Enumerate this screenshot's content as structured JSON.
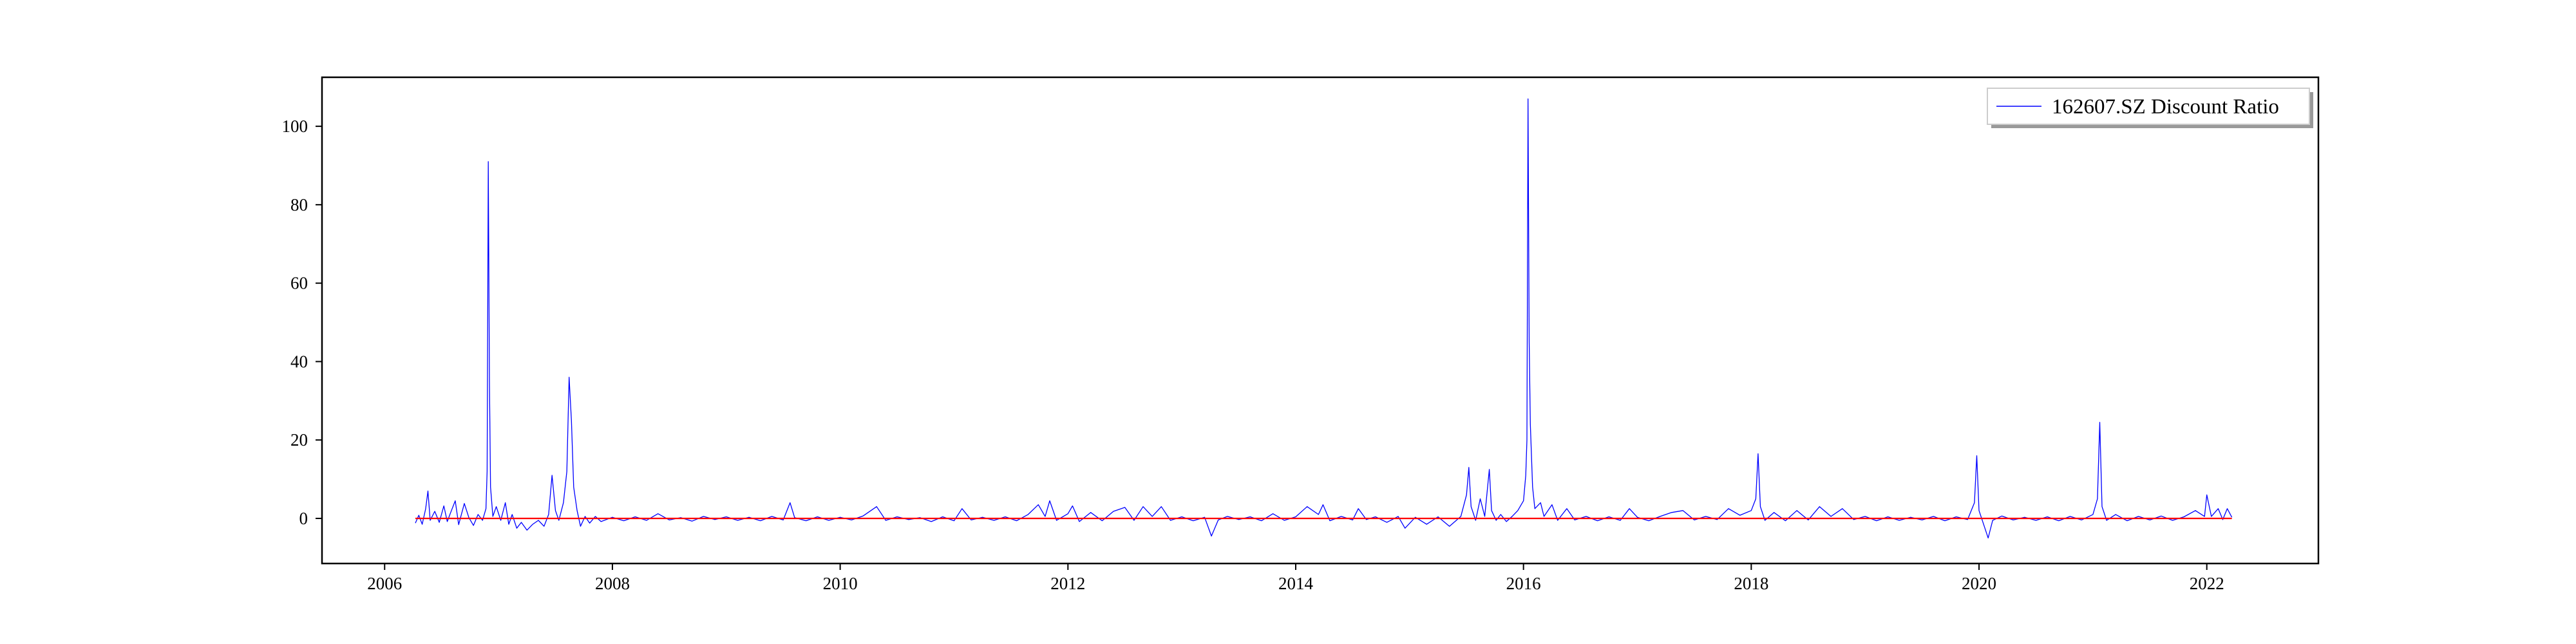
{
  "chart_data": {
    "type": "line",
    "title": "",
    "xlabel": "",
    "ylabel": "",
    "xlim": [
      2005.45,
      2022.98
    ],
    "ylim": [
      -11.5,
      112.5
    ],
    "x_ticks": [
      2006,
      2008,
      2010,
      2012,
      2014,
      2016,
      2018,
      2020,
      2022
    ],
    "y_ticks": [
      0,
      20,
      40,
      60,
      80,
      100
    ],
    "x_tick_labels": [
      "2006",
      "2008",
      "2010",
      "2012",
      "2014",
      "2016",
      "2018",
      "2020",
      "2022"
    ],
    "y_tick_labels": [
      "0",
      "20",
      "40",
      "60",
      "80",
      "100"
    ],
    "grid": false,
    "legend_position": "upper right",
    "x_range": [
      2006.27,
      2022.22
    ],
    "series": [
      {
        "name": "162607.SZ Discount Ratio",
        "color": "#0000ff",
        "points": [
          [
            2006.27,
            -1.2
          ],
          [
            2006.3,
            0.8
          ],
          [
            2006.33,
            -1.5
          ],
          [
            2006.36,
            2.4
          ],
          [
            2006.38,
            7.0
          ],
          [
            2006.4,
            -0.5
          ],
          [
            2006.44,
            1.8
          ],
          [
            2006.48,
            -1.0
          ],
          [
            2006.52,
            3.2
          ],
          [
            2006.55,
            -0.8
          ],
          [
            2006.58,
            1.5
          ],
          [
            2006.62,
            4.5
          ],
          [
            2006.65,
            -1.6
          ],
          [
            2006.7,
            3.8
          ],
          [
            2006.74,
            0.2
          ],
          [
            2006.78,
            -1.8
          ],
          [
            2006.82,
            1.0
          ],
          [
            2006.86,
            -0.5
          ],
          [
            2006.89,
            2.5
          ],
          [
            2006.9,
            12.0
          ],
          [
            2006.91,
            91.0
          ],
          [
            2006.92,
            35.0
          ],
          [
            2006.93,
            8.0
          ],
          [
            2006.95,
            0.5
          ],
          [
            2006.98,
            3.0
          ],
          [
            2007.02,
            -0.5
          ],
          [
            2007.06,
            4.0
          ],
          [
            2007.09,
            -1.5
          ],
          [
            2007.12,
            1.0
          ],
          [
            2007.16,
            -2.5
          ],
          [
            2007.2,
            -1.0
          ],
          [
            2007.25,
            -3.0
          ],
          [
            2007.3,
            -1.5
          ],
          [
            2007.35,
            -0.5
          ],
          [
            2007.4,
            -2.0
          ],
          [
            2007.44,
            1.0
          ],
          [
            2007.47,
            11.0
          ],
          [
            2007.5,
            2.0
          ],
          [
            2007.53,
            -0.5
          ],
          [
            2007.57,
            4.0
          ],
          [
            2007.6,
            12.0
          ],
          [
            2007.62,
            36.0
          ],
          [
            2007.64,
            25.0
          ],
          [
            2007.66,
            8.0
          ],
          [
            2007.69,
            2.0
          ],
          [
            2007.72,
            -2.0
          ],
          [
            2007.76,
            0.5
          ],
          [
            2007.8,
            -1.2
          ],
          [
            2007.85,
            0.5
          ],
          [
            2007.9,
            -0.8
          ],
          [
            2008.0,
            0.3
          ],
          [
            2008.1,
            -0.6
          ],
          [
            2008.2,
            0.4
          ],
          [
            2008.3,
            -0.5
          ],
          [
            2008.4,
            1.2
          ],
          [
            2008.5,
            -0.4
          ],
          [
            2008.6,
            0.2
          ],
          [
            2008.7,
            -0.7
          ],
          [
            2008.8,
            0.5
          ],
          [
            2008.9,
            -0.3
          ],
          [
            2009.0,
            0.4
          ],
          [
            2009.1,
            -0.5
          ],
          [
            2009.2,
            0.3
          ],
          [
            2009.3,
            -0.6
          ],
          [
            2009.4,
            0.5
          ],
          [
            2009.5,
            -0.4
          ],
          [
            2009.56,
            4.0
          ],
          [
            2009.6,
            0.2
          ],
          [
            2009.7,
            -0.6
          ],
          [
            2009.8,
            0.4
          ],
          [
            2009.9,
            -0.5
          ],
          [
            2010.0,
            0.3
          ],
          [
            2010.1,
            -0.4
          ],
          [
            2010.2,
            0.6
          ],
          [
            2010.32,
            3.0
          ],
          [
            2010.4,
            -0.5
          ],
          [
            2010.5,
            0.4
          ],
          [
            2010.6,
            -0.3
          ],
          [
            2010.7,
            0.2
          ],
          [
            2010.8,
            -0.8
          ],
          [
            2010.9,
            0.4
          ],
          [
            2011.0,
            -0.6
          ],
          [
            2011.07,
            2.5
          ],
          [
            2011.15,
            -0.4
          ],
          [
            2011.25,
            0.3
          ],
          [
            2011.35,
            -0.5
          ],
          [
            2011.45,
            0.4
          ],
          [
            2011.55,
            -0.6
          ],
          [
            2011.65,
            1.0
          ],
          [
            2011.74,
            3.5
          ],
          [
            2011.8,
            0.5
          ],
          [
            2011.84,
            4.5
          ],
          [
            2011.9,
            -0.5
          ],
          [
            2012.0,
            1.2
          ],
          [
            2012.04,
            3.2
          ],
          [
            2012.1,
            -0.8
          ],
          [
            2012.2,
            1.5
          ],
          [
            2012.3,
            -0.6
          ],
          [
            2012.4,
            1.8
          ],
          [
            2012.5,
            2.8
          ],
          [
            2012.58,
            -0.5
          ],
          [
            2012.66,
            3.0
          ],
          [
            2012.74,
            0.5
          ],
          [
            2012.82,
            3.0
          ],
          [
            2012.9,
            -0.5
          ],
          [
            2013.0,
            0.4
          ],
          [
            2013.1,
            -0.6
          ],
          [
            2013.2,
            0.3
          ],
          [
            2013.26,
            -4.5
          ],
          [
            2013.32,
            -0.4
          ],
          [
            2013.4,
            0.5
          ],
          [
            2013.5,
            -0.3
          ],
          [
            2013.6,
            0.4
          ],
          [
            2013.7,
            -0.6
          ],
          [
            2013.8,
            1.2
          ],
          [
            2013.9,
            -0.5
          ],
          [
            2014.0,
            0.4
          ],
          [
            2014.1,
            3.0
          ],
          [
            2014.2,
            1.0
          ],
          [
            2014.24,
            3.5
          ],
          [
            2014.3,
            -0.6
          ],
          [
            2014.4,
            0.5
          ],
          [
            2014.5,
            -0.4
          ],
          [
            2014.55,
            2.5
          ],
          [
            2014.62,
            -0.3
          ],
          [
            2014.7,
            0.4
          ],
          [
            2014.8,
            -1.0
          ],
          [
            2014.9,
            0.5
          ],
          [
            2014.96,
            -2.5
          ],
          [
            2015.05,
            0.3
          ],
          [
            2015.15,
            -1.5
          ],
          [
            2015.25,
            0.4
          ],
          [
            2015.35,
            -2.0
          ],
          [
            2015.45,
            0.5
          ],
          [
            2015.5,
            6.0
          ],
          [
            2015.52,
            13.0
          ],
          [
            2015.54,
            3.0
          ],
          [
            2015.58,
            -0.5
          ],
          [
            2015.62,
            5.0
          ],
          [
            2015.66,
            0.5
          ],
          [
            2015.7,
            12.5
          ],
          [
            2015.72,
            2.0
          ],
          [
            2015.76,
            -0.5
          ],
          [
            2015.8,
            1.0
          ],
          [
            2015.85,
            -0.8
          ],
          [
            2015.9,
            0.5
          ],
          [
            2015.95,
            2.0
          ],
          [
            2016.0,
            4.5
          ],
          [
            2016.02,
            11.0
          ],
          [
            2016.03,
            20.0
          ],
          [
            2016.04,
            107.0
          ],
          [
            2016.05,
            45.0
          ],
          [
            2016.06,
            24.0
          ],
          [
            2016.08,
            8.0
          ],
          [
            2016.1,
            2.5
          ],
          [
            2016.15,
            4.0
          ],
          [
            2016.18,
            0.5
          ],
          [
            2016.25,
            3.5
          ],
          [
            2016.3,
            -0.5
          ],
          [
            2016.38,
            2.5
          ],
          [
            2016.45,
            -0.4
          ],
          [
            2016.55,
            0.5
          ],
          [
            2016.65,
            -0.6
          ],
          [
            2016.75,
            0.4
          ],
          [
            2016.85,
            -0.5
          ],
          [
            2016.93,
            2.5
          ],
          [
            2017.0,
            0.3
          ],
          [
            2017.1,
            -0.6
          ],
          [
            2017.2,
            0.5
          ],
          [
            2017.3,
            1.5
          ],
          [
            2017.4,
            2.0
          ],
          [
            2017.5,
            -0.4
          ],
          [
            2017.6,
            0.5
          ],
          [
            2017.7,
            -0.3
          ],
          [
            2017.8,
            2.5
          ],
          [
            2017.9,
            0.8
          ],
          [
            2018.0,
            2.0
          ],
          [
            2018.04,
            5.0
          ],
          [
            2018.06,
            16.5
          ],
          [
            2018.08,
            3.0
          ],
          [
            2018.12,
            -0.5
          ],
          [
            2018.2,
            1.5
          ],
          [
            2018.3,
            -0.6
          ],
          [
            2018.4,
            2.0
          ],
          [
            2018.5,
            -0.4
          ],
          [
            2018.6,
            3.0
          ],
          [
            2018.7,
            0.5
          ],
          [
            2018.8,
            2.5
          ],
          [
            2018.9,
            -0.3
          ],
          [
            2019.0,
            0.5
          ],
          [
            2019.1,
            -0.6
          ],
          [
            2019.2,
            0.4
          ],
          [
            2019.3,
            -0.5
          ],
          [
            2019.4,
            0.3
          ],
          [
            2019.5,
            -0.4
          ],
          [
            2019.6,
            0.5
          ],
          [
            2019.7,
            -0.6
          ],
          [
            2019.8,
            0.4
          ],
          [
            2019.9,
            -0.3
          ],
          [
            2019.96,
            4.0
          ],
          [
            2019.98,
            16.0
          ],
          [
            2020.0,
            2.0
          ],
          [
            2020.04,
            -1.5
          ],
          [
            2020.08,
            -5.0
          ],
          [
            2020.12,
            -0.5
          ],
          [
            2020.2,
            0.6
          ],
          [
            2020.3,
            -0.4
          ],
          [
            2020.4,
            0.3
          ],
          [
            2020.5,
            -0.5
          ],
          [
            2020.6,
            0.4
          ],
          [
            2020.7,
            -0.6
          ],
          [
            2020.8,
            0.5
          ],
          [
            2020.9,
            -0.4
          ],
          [
            2021.0,
            1.0
          ],
          [
            2021.04,
            5.0
          ],
          [
            2021.06,
            24.5
          ],
          [
            2021.08,
            3.0
          ],
          [
            2021.12,
            -0.5
          ],
          [
            2021.2,
            1.0
          ],
          [
            2021.3,
            -0.6
          ],
          [
            2021.4,
            0.5
          ],
          [
            2021.5,
            -0.4
          ],
          [
            2021.6,
            0.6
          ],
          [
            2021.7,
            -0.5
          ],
          [
            2021.8,
            0.4
          ],
          [
            2021.9,
            2.0
          ],
          [
            2021.98,
            0.5
          ],
          [
            2022.0,
            6.0
          ],
          [
            2022.04,
            0.5
          ],
          [
            2022.1,
            2.5
          ],
          [
            2022.14,
            -0.3
          ],
          [
            2022.18,
            2.5
          ],
          [
            2022.22,
            0.3
          ]
        ]
      },
      {
        "color": "#ff0000",
        "points": [
          [
            2006.27,
            0.0
          ],
          [
            2022.22,
            0.0
          ]
        ]
      }
    ]
  }
}
